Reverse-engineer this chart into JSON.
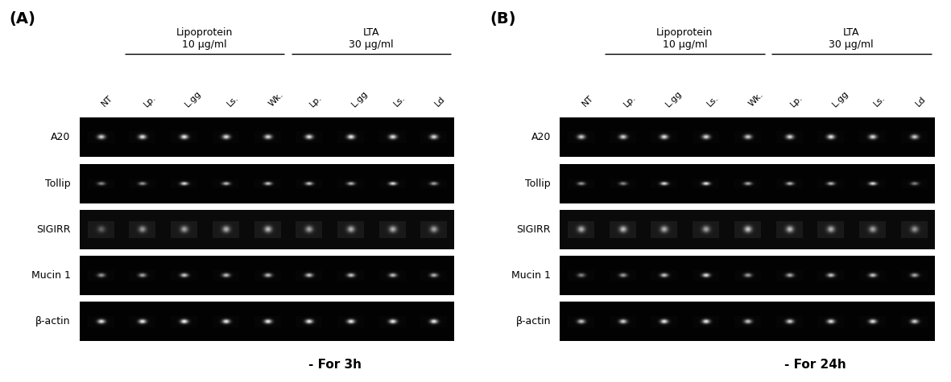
{
  "panel_A_label": "(A)",
  "panel_B_label": "(B)",
  "subtitle_A": "- For 3h",
  "subtitle_B": "- For 24h",
  "lipoprotein_label": "Lipoprotein\n10 μg/ml",
  "lta_label": "LTA\n30 μg/ml",
  "col_labels": [
    "NT",
    "Lp.",
    "L.gg",
    "Ls.",
    "Wk.",
    "Lp.",
    "L.gg",
    "Ls.",
    "Ld"
  ],
  "row_labels": [
    "A20",
    "Tollip",
    "SIGIRR",
    "Mucin 1",
    "β-actin"
  ],
  "row_keys": [
    "A20",
    "Tollip",
    "SIGIRR",
    "Mucin 1",
    "b-actin"
  ],
  "A_bands": {
    "A20": [
      0.82,
      0.88,
      0.92,
      0.88,
      0.85,
      0.88,
      0.92,
      0.88,
      0.85
    ],
    "Tollip": [
      0.55,
      0.6,
      0.88,
      0.75,
      0.78,
      0.78,
      0.72,
      0.88,
      0.65
    ],
    "SIGIRR": [
      0.35,
      0.55,
      0.6,
      0.65,
      0.7,
      0.6,
      0.65,
      0.65,
      0.6
    ],
    "Mucin 1": [
      0.6,
      0.65,
      0.8,
      0.75,
      0.75,
      0.78,
      0.78,
      0.75,
      0.7
    ],
    "b-actin": [
      0.9,
      0.93,
      0.97,
      0.93,
      0.93,
      0.93,
      0.93,
      0.93,
      0.93
    ]
  },
  "B_bands": {
    "A20": [
      0.8,
      0.82,
      0.88,
      0.85,
      0.8,
      0.85,
      0.9,
      0.85,
      0.8
    ],
    "Tollip": [
      0.6,
      0.55,
      0.88,
      0.92,
      0.68,
      0.72,
      0.72,
      0.88,
      0.52
    ],
    "SIGIRR": [
      0.65,
      0.7,
      0.65,
      0.6,
      0.75,
      0.7,
      0.65,
      0.6,
      0.55
    ],
    "Mucin 1": [
      0.52,
      0.62,
      0.78,
      0.88,
      0.62,
      0.68,
      0.78,
      0.78,
      0.68
    ],
    "b-actin": [
      0.78,
      0.83,
      0.92,
      0.92,
      0.78,
      0.83,
      0.88,
      0.88,
      0.83
    ]
  },
  "sigirr_bg_A": 0.12,
  "sigirr_bg_B": 0.18,
  "row_label_fontsize": 9,
  "col_label_fontsize": 8,
  "header_fontsize": 9,
  "panel_label_fontsize": 14,
  "subtitle_fontsize": 11
}
